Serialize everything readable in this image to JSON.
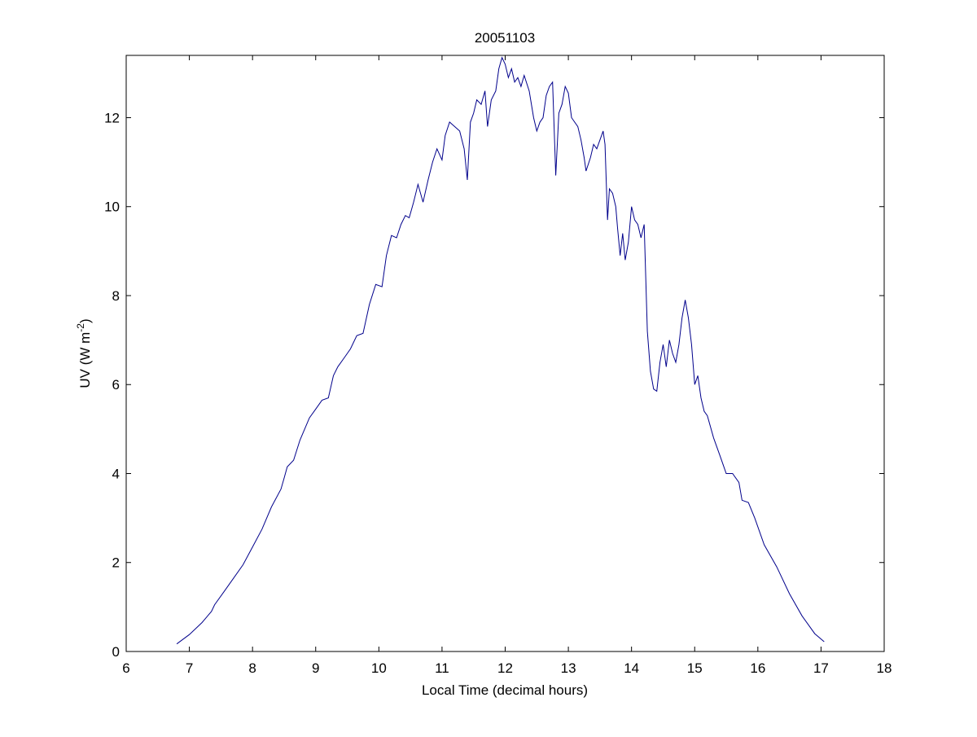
{
  "chart_data": {
    "type": "line",
    "title": "20051103",
    "xlabel": "Local Time (decimal hours)",
    "ylabel_main": "UV (W m",
    "ylabel_sup": "-2",
    "ylabel_close": ")",
    "xlim": [
      6,
      18
    ],
    "ylim": [
      0,
      13.4
    ],
    "x_ticks": [
      6,
      7,
      8,
      9,
      10,
      11,
      12,
      13,
      14,
      15,
      16,
      17,
      18
    ],
    "y_ticks": [
      0,
      2,
      4,
      6,
      8,
      10,
      12
    ],
    "grid": false,
    "line_color": "#00008b",
    "series": [
      {
        "points": [
          [
            6.8,
            0.17
          ],
          [
            7.0,
            0.38
          ],
          [
            7.2,
            0.65
          ],
          [
            7.35,
            0.9
          ],
          [
            7.4,
            1.05
          ],
          [
            7.55,
            1.35
          ],
          [
            7.7,
            1.65
          ],
          [
            7.85,
            1.95
          ],
          [
            8.0,
            2.35
          ],
          [
            8.15,
            2.75
          ],
          [
            8.3,
            3.25
          ],
          [
            8.45,
            3.65
          ],
          [
            8.5,
            3.9
          ],
          [
            8.55,
            4.15
          ],
          [
            8.65,
            4.3
          ],
          [
            8.75,
            4.75
          ],
          [
            8.9,
            5.25
          ],
          [
            9.0,
            5.45
          ],
          [
            9.1,
            5.65
          ],
          [
            9.2,
            5.7
          ],
          [
            9.28,
            6.2
          ],
          [
            9.35,
            6.4
          ],
          [
            9.45,
            6.6
          ],
          [
            9.55,
            6.8
          ],
          [
            9.65,
            7.1
          ],
          [
            9.75,
            7.15
          ],
          [
            9.85,
            7.8
          ],
          [
            9.95,
            8.25
          ],
          [
            10.05,
            8.2
          ],
          [
            10.12,
            8.9
          ],
          [
            10.2,
            9.35
          ],
          [
            10.28,
            9.3
          ],
          [
            10.35,
            9.6
          ],
          [
            10.42,
            9.8
          ],
          [
            10.48,
            9.75
          ],
          [
            10.55,
            10.1
          ],
          [
            10.62,
            10.5
          ],
          [
            10.7,
            10.1
          ],
          [
            10.78,
            10.6
          ],
          [
            10.85,
            11.0
          ],
          [
            10.92,
            11.3
          ],
          [
            11.0,
            11.05
          ],
          [
            11.05,
            11.6
          ],
          [
            11.12,
            11.9
          ],
          [
            11.2,
            11.8
          ],
          [
            11.28,
            11.7
          ],
          [
            11.35,
            11.3
          ],
          [
            11.4,
            10.6
          ],
          [
            11.45,
            11.9
          ],
          [
            11.5,
            12.1
          ],
          [
            11.55,
            12.4
          ],
          [
            11.62,
            12.3
          ],
          [
            11.68,
            12.6
          ],
          [
            11.72,
            11.8
          ],
          [
            11.78,
            12.4
          ],
          [
            11.85,
            12.6
          ],
          [
            11.9,
            13.1
          ],
          [
            11.95,
            13.35
          ],
          [
            12.0,
            13.2
          ],
          [
            12.05,
            12.9
          ],
          [
            12.1,
            13.1
          ],
          [
            12.15,
            12.8
          ],
          [
            12.2,
            12.9
          ],
          [
            12.25,
            12.7
          ],
          [
            12.3,
            12.95
          ],
          [
            12.38,
            12.6
          ],
          [
            12.45,
            12.0
          ],
          [
            12.5,
            11.7
          ],
          [
            12.55,
            11.9
          ],
          [
            12.6,
            12.0
          ],
          [
            12.65,
            12.5
          ],
          [
            12.7,
            12.7
          ],
          [
            12.75,
            12.8
          ],
          [
            12.8,
            10.7
          ],
          [
            12.85,
            12.1
          ],
          [
            12.9,
            12.3
          ],
          [
            12.95,
            12.7
          ],
          [
            13.0,
            12.55
          ],
          [
            13.05,
            12.0
          ],
          [
            13.15,
            11.8
          ],
          [
            13.2,
            11.5
          ],
          [
            13.25,
            11.1
          ],
          [
            13.28,
            10.8
          ],
          [
            13.35,
            11.1
          ],
          [
            13.4,
            11.4
          ],
          [
            13.45,
            11.3
          ],
          [
            13.5,
            11.5
          ],
          [
            13.55,
            11.7
          ],
          [
            13.58,
            11.4
          ],
          [
            13.62,
            9.7
          ],
          [
            13.65,
            10.4
          ],
          [
            13.7,
            10.3
          ],
          [
            13.75,
            10.0
          ],
          [
            13.78,
            9.5
          ],
          [
            13.82,
            8.9
          ],
          [
            13.86,
            9.4
          ],
          [
            13.9,
            8.8
          ],
          [
            13.95,
            9.2
          ],
          [
            14.0,
            10.0
          ],
          [
            14.05,
            9.7
          ],
          [
            14.1,
            9.6
          ],
          [
            14.15,
            9.3
          ],
          [
            14.2,
            9.6
          ],
          [
            14.25,
            7.2
          ],
          [
            14.3,
            6.3
          ],
          [
            14.35,
            5.9
          ],
          [
            14.4,
            5.85
          ],
          [
            14.45,
            6.5
          ],
          [
            14.5,
            6.9
          ],
          [
            14.55,
            6.4
          ],
          [
            14.6,
            7.0
          ],
          [
            14.65,
            6.7
          ],
          [
            14.7,
            6.5
          ],
          [
            14.75,
            6.9
          ],
          [
            14.8,
            7.5
          ],
          [
            14.85,
            7.9
          ],
          [
            14.9,
            7.5
          ],
          [
            14.95,
            6.9
          ],
          [
            15.0,
            6.0
          ],
          [
            15.05,
            6.2
          ],
          [
            15.1,
            5.7
          ],
          [
            15.15,
            5.4
          ],
          [
            15.2,
            5.3
          ],
          [
            15.3,
            4.8
          ],
          [
            15.4,
            4.4
          ],
          [
            15.5,
            4.0
          ],
          [
            15.6,
            4.0
          ],
          [
            15.7,
            3.8
          ],
          [
            15.75,
            3.4
          ],
          [
            15.85,
            3.35
          ],
          [
            15.95,
            3.0
          ],
          [
            16.1,
            2.4
          ],
          [
            16.3,
            1.9
          ],
          [
            16.5,
            1.3
          ],
          [
            16.7,
            0.8
          ],
          [
            16.9,
            0.4
          ],
          [
            17.05,
            0.22
          ]
        ]
      }
    ]
  }
}
